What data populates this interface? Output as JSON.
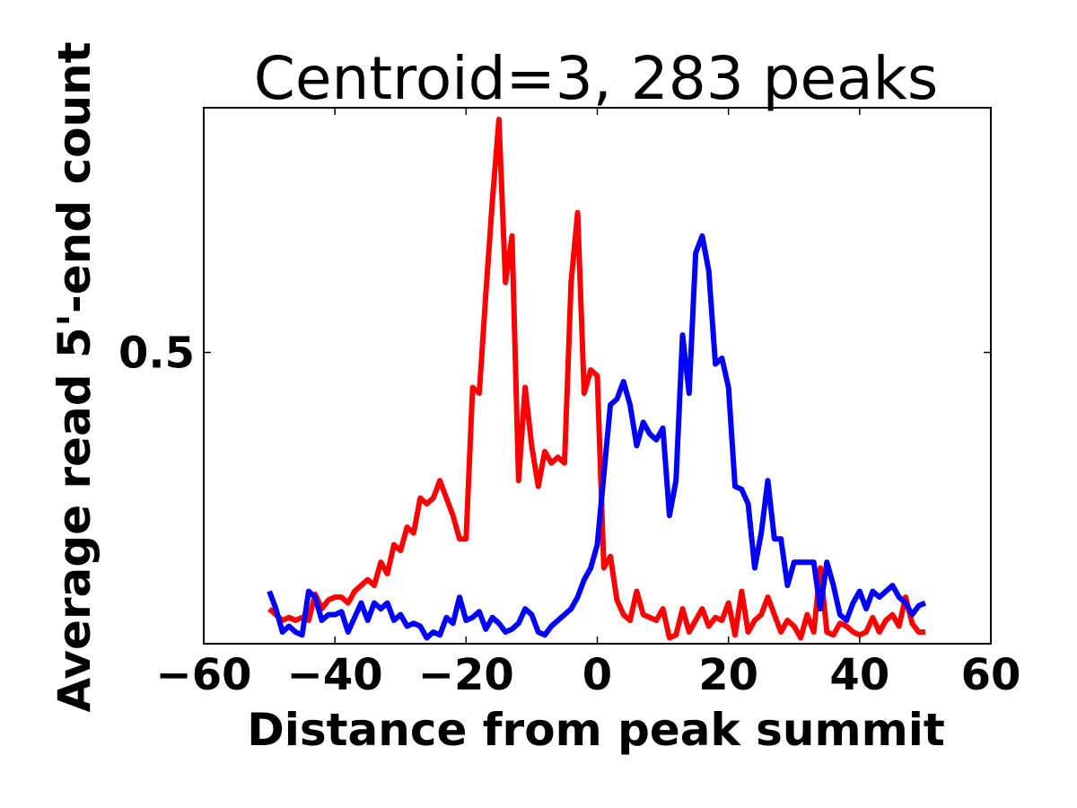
{
  "chart_data": {
    "type": "line",
    "title": "Centroid=3, 283 peaks",
    "xlabel": "Distance from peak summit",
    "ylabel": "Average read 5'-end count",
    "xlim": [
      -60,
      60
    ],
    "ylim": [
      0,
      0.92
    ],
    "xticks": [
      {
        "value": -60,
        "label": "−60"
      },
      {
        "value": -40,
        "label": "−40"
      },
      {
        "value": -20,
        "label": "−20"
      },
      {
        "value": 0,
        "label": "0"
      },
      {
        "value": 20,
        "label": "20"
      },
      {
        "value": 40,
        "label": "40"
      },
      {
        "value": 60,
        "label": "60"
      }
    ],
    "yticks": [
      {
        "value": 0.5,
        "label": "0.5"
      }
    ],
    "grid": false,
    "x": [
      -50,
      -49,
      -48,
      -47,
      -46,
      -45,
      -44,
      -43,
      -42,
      -41,
      -40,
      -39,
      -38,
      -37,
      -36,
      -35,
      -34,
      -33,
      -32,
      -31,
      -30,
      -29,
      -28,
      -27,
      -26,
      -25,
      -24,
      -23,
      -22,
      -21,
      -20,
      -19,
      -18,
      -17,
      -16,
      -15,
      -14,
      -13,
      -12,
      -11,
      -10,
      -9,
      -8,
      -7,
      -6,
      -5,
      -4,
      -3,
      -2,
      -1,
      0,
      1,
      2,
      3,
      4,
      5,
      6,
      7,
      8,
      9,
      10,
      11,
      12,
      13,
      14,
      15,
      16,
      17,
      18,
      19,
      20,
      21,
      22,
      23,
      24,
      25,
      26,
      27,
      28,
      29,
      30,
      31,
      32,
      33,
      34,
      35,
      36,
      37,
      38,
      39,
      40,
      41,
      42,
      43,
      44,
      45,
      46,
      47,
      48,
      49,
      50
    ],
    "series": [
      {
        "color": "#ff0000",
        "values": [
          0.06,
          0.05,
          0.04,
          0.045,
          0.04,
          0.045,
          0.04,
          0.085,
          0.06,
          0.075,
          0.08,
          0.08,
          0.07,
          0.09,
          0.1,
          0.11,
          0.1,
          0.14,
          0.12,
          0.17,
          0.16,
          0.2,
          0.19,
          0.25,
          0.24,
          0.25,
          0.28,
          0.25,
          0.22,
          0.18,
          0.18,
          0.44,
          0.43,
          0.6,
          0.76,
          0.9,
          0.62,
          0.7,
          0.28,
          0.44,
          0.34,
          0.27,
          0.33,
          0.31,
          0.32,
          0.31,
          0.62,
          0.74,
          0.43,
          0.47,
          0.46,
          0.13,
          0.15,
          0.075,
          0.05,
          0.04,
          0.09,
          0.05,
          0.045,
          0.04,
          0.06,
          0.01,
          0.015,
          0.06,
          0.02,
          0.04,
          0.06,
          0.03,
          0.045,
          0.04,
          0.07,
          0.015,
          0.09,
          0.02,
          0.04,
          0.05,
          0.08,
          0.05,
          0.02,
          0.04,
          0.03,
          0.01,
          0.05,
          0.02,
          0.13,
          0.02,
          0.015,
          0.035,
          0.03,
          0.02,
          0.015,
          0.02,
          0.045,
          0.02,
          0.04,
          0.05,
          0.03,
          0.08,
          0.035,
          0.02,
          0.02
        ]
      },
      {
        "color": "#0000ff",
        "values": [
          0.09,
          0.06,
          0.02,
          0.03,
          0.02,
          0.015,
          0.09,
          0.08,
          0.04,
          0.05,
          0.05,
          0.055,
          0.02,
          0.045,
          0.07,
          0.04,
          0.07,
          0.06,
          0.07,
          0.04,
          0.05,
          0.03,
          0.035,
          0.03,
          0.01,
          0.02,
          0.015,
          0.045,
          0.035,
          0.08,
          0.04,
          0.045,
          0.055,
          0.025,
          0.045,
          0.035,
          0.02,
          0.025,
          0.035,
          0.06,
          0.05,
          0.02,
          0.015,
          0.03,
          0.04,
          0.05,
          0.06,
          0.08,
          0.11,
          0.13,
          0.17,
          0.29,
          0.41,
          0.42,
          0.45,
          0.41,
          0.34,
          0.38,
          0.36,
          0.35,
          0.37,
          0.22,
          0.28,
          0.53,
          0.43,
          0.67,
          0.7,
          0.64,
          0.48,
          0.49,
          0.44,
          0.27,
          0.265,
          0.24,
          0.13,
          0.19,
          0.28,
          0.18,
          0.18,
          0.1,
          0.14,
          0.14,
          0.14,
          0.14,
          0.06,
          0.14,
          0.1,
          0.05,
          0.04,
          0.07,
          0.09,
          0.06,
          0.09,
          0.08,
          0.09,
          0.1,
          0.08,
          0.07,
          0.05,
          0.065,
          0.07
        ]
      }
    ]
  }
}
